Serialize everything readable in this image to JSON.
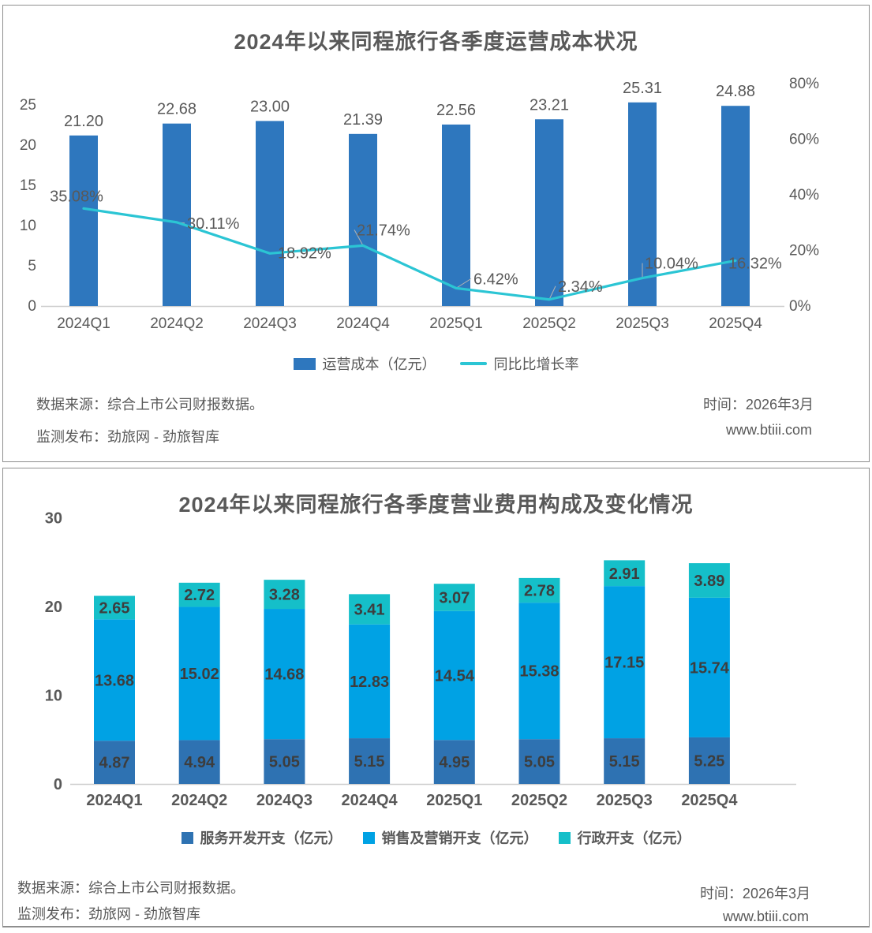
{
  "colors": {
    "bar_blue": "#2E77BE",
    "line_cyan": "#2BC5D4",
    "stack_dark_blue": "#2E72B2",
    "stack_bright_blue": "#00A2E4",
    "stack_teal": "#15BFC9",
    "text_gray": "#595959"
  },
  "chart_data": [
    {
      "type": "combo-bar-line",
      "title": "2024年以来同程旅行各季度运营成本状况",
      "categories": [
        "2024Q1",
        "2024Q2",
        "2024Q3",
        "2024Q4",
        "2025Q1",
        "2025Q2",
        "2025Q3",
        "2025Q4"
      ],
      "series": [
        {
          "name": "运营成本（亿元）",
          "type": "bar",
          "axis": "left",
          "color": "#2E77BE",
          "values": [
            21.2,
            22.68,
            23.0,
            21.39,
            22.56,
            23.21,
            25.31,
            24.88
          ]
        },
        {
          "name": "同比比增长率",
          "type": "line",
          "axis": "right",
          "unit": "%",
          "color": "#2BC5D4",
          "values": [
            35.08,
            30.11,
            18.92,
            21.74,
            6.42,
            2.34,
            10.04,
            16.32
          ]
        }
      ],
      "left_axis": {
        "ticks": [
          0,
          5,
          10,
          15,
          20,
          25
        ],
        "range": [
          0,
          27.8
        ]
      },
      "right_axis": {
        "ticks": [
          0,
          20,
          40,
          60,
          80
        ],
        "range": [
          0,
          85
        ],
        "unit": "%"
      },
      "grid": false,
      "legend_position": "bottom",
      "value_labels": true
    },
    {
      "type": "stacked-bar",
      "title": "2024年以来同程旅行各季度营业费用构成及变化情况",
      "categories": [
        "2024Q1",
        "2024Q2",
        "2024Q3",
        "2024Q4",
        "2025Q1",
        "2025Q2",
        "2025Q3",
        "2025Q4"
      ],
      "series": [
        {
          "name": "服务开发开支（亿元）",
          "color": "#2E72B2",
          "values": [
            4.87,
            4.94,
            5.05,
            5.15,
            4.95,
            5.05,
            5.15,
            5.25
          ]
        },
        {
          "name": "销售及营销开支（亿元）",
          "color": "#00A2E4",
          "values": [
            13.68,
            15.02,
            14.68,
            12.83,
            14.54,
            15.38,
            17.15,
            15.74
          ]
        },
        {
          "name": "行政开支（亿元）",
          "color": "#15BFC9",
          "values": [
            2.65,
            2.72,
            3.28,
            3.41,
            3.07,
            2.78,
            2.91,
            3.89
          ]
        }
      ],
      "y_axis": {
        "ticks": [
          0,
          10,
          20,
          30
        ],
        "range": [
          0,
          32
        ]
      },
      "grid": false,
      "legend_position": "bottom",
      "value_labels": true
    }
  ],
  "panels": [
    {
      "footer": {
        "source": "数据来源：综合上市公司财报数据。",
        "publisher": "监测发布：劲旅网 - 劲旅智库",
        "time": "时间：2026年3月",
        "site": "www.btiii.com"
      }
    },
    {
      "footer": {
        "source": "数据来源：综合上市公司财报数据。",
        "publisher": "监测发布：劲旅网 - 劲旅智库",
        "time": "时间：2026年3月",
        "site": "www.btiii.com"
      }
    }
  ]
}
